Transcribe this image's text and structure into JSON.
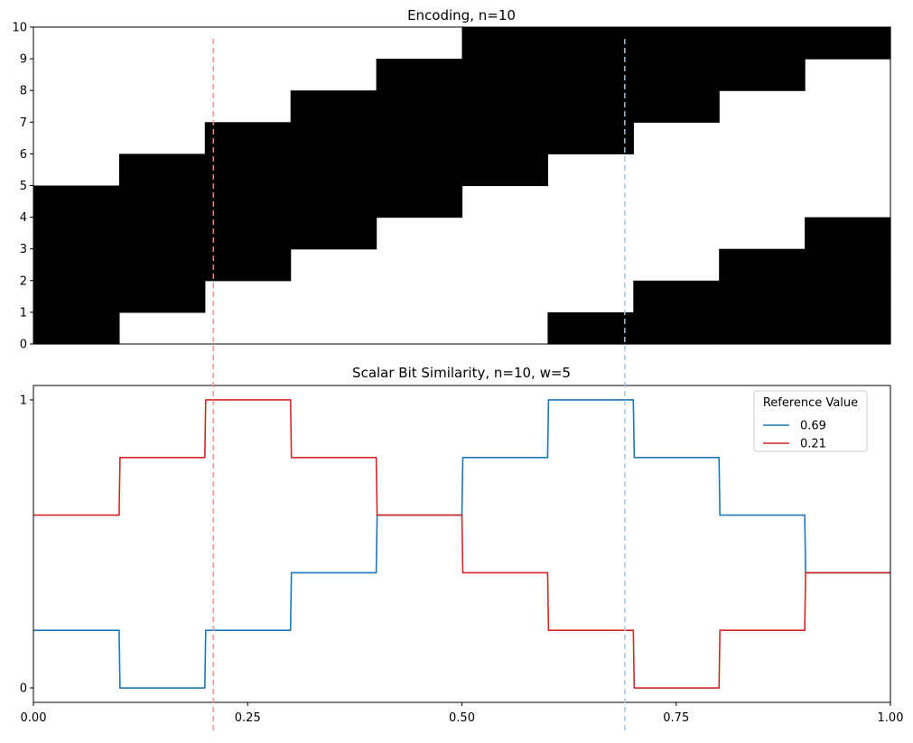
{
  "chart_data": [
    {
      "type": "heatmap",
      "title": "Encoding, n=10",
      "xlabel": "",
      "ylabel": "",
      "xlim": [
        0,
        1
      ],
      "ylim": [
        0,
        10
      ],
      "y_ticks": [
        "0",
        "1",
        "2",
        "3",
        "4",
        "5",
        "6",
        "7",
        "8",
        "9",
        "10"
      ],
      "bins": [
        0.0,
        0.1,
        0.2,
        0.3,
        0.4,
        0.5,
        0.6,
        0.7,
        0.8,
        0.9,
        1.0
      ],
      "active_bits_per_bin": [
        [
          0,
          1,
          2,
          3,
          4
        ],
        [
          1,
          2,
          3,
          4,
          5
        ],
        [
          2,
          3,
          4,
          5,
          6
        ],
        [
          3,
          4,
          5,
          6,
          7
        ],
        [
          4,
          5,
          6,
          7,
          8
        ],
        [
          5,
          6,
          7,
          8,
          9
        ],
        [
          6,
          7,
          8,
          9,
          0
        ],
        [
          7,
          8,
          9,
          0,
          1
        ],
        [
          8,
          9,
          0,
          1,
          2
        ],
        [
          9,
          0,
          1,
          2,
          3
        ]
      ],
      "on_color": "#000000",
      "off_color": "#ffffff"
    },
    {
      "type": "line",
      "title": "Scalar Bit Similarity, n=10, w=5",
      "xlabel": "",
      "ylabel": "",
      "xlim": [
        0,
        1
      ],
      "ylim": [
        -0.05,
        1.05
      ],
      "x_ticks": [
        "0.00",
        "0.25",
        "0.50",
        "0.75",
        "1.00"
      ],
      "y_ticks": [
        "0",
        "1"
      ],
      "legend": {
        "title": "Reference Value",
        "placement": "top-right"
      },
      "series": [
        {
          "name": "0.69",
          "color": "#1f77b4",
          "x": [
            0,
            0.1,
            0.2,
            0.3,
            0.4,
            0.5,
            0.6,
            0.7,
            0.8,
            0.9,
            1.0
          ],
          "values": [
            0.2,
            0.0,
            0.2,
            0.4,
            0.6,
            0.8,
            1.0,
            0.8,
            0.6,
            0.4,
            0.4
          ]
        },
        {
          "name": "0.21",
          "color": "#d62728",
          "x": [
            0,
            0.1,
            0.2,
            0.3,
            0.4,
            0.5,
            0.6,
            0.7,
            0.8,
            0.9,
            1.0
          ],
          "values": [
            0.6,
            0.8,
            1.0,
            0.8,
            0.6,
            0.4,
            0.2,
            0.0,
            0.2,
            0.4,
            0.4
          ]
        }
      ],
      "reference_lines": [
        {
          "x": 0.69,
          "color": "#9ec5e2"
        },
        {
          "x": 0.21,
          "color": "#f28b8b"
        }
      ]
    }
  ]
}
